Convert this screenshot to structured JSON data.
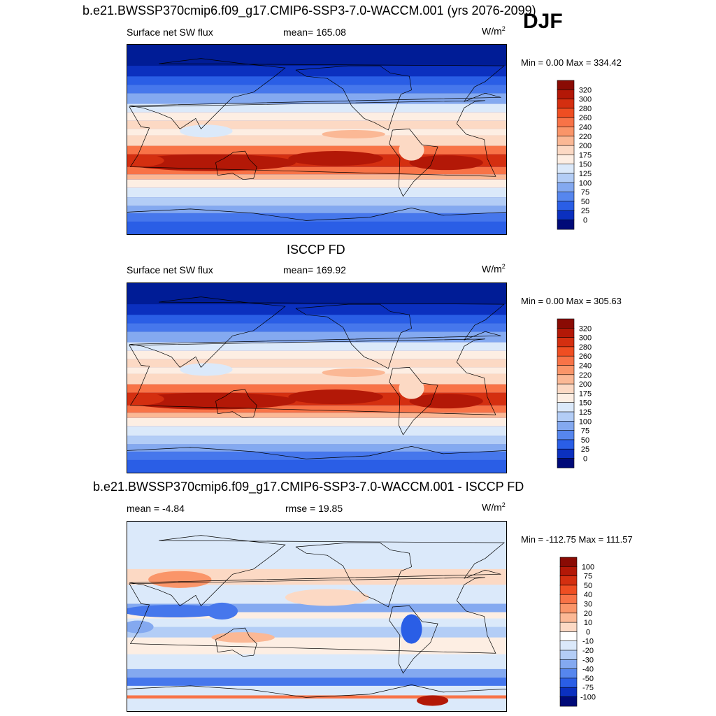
{
  "season": "DJF",
  "colors": {
    "positive_ramp": [
      "#fdeee3",
      "#fcd4bc",
      "#fbb895",
      "#fa9a6e",
      "#f97a4a",
      "#f45a2a",
      "#e13d14",
      "#c8260a",
      "#a71406",
      "#8a0b04"
    ],
    "negative_ramp": [
      "#dbe9fa",
      "#c2d7f7",
      "#a3c1f4",
      "#84a9f0",
      "#6491ee",
      "#4677ec",
      "#2a5ee6",
      "#1747d9",
      "#0b30bf",
      "#001c96",
      "#000a78"
    ],
    "neutral": "#ffffff"
  },
  "chart_data": [
    {
      "type": "heatmap",
      "title": "b.e21.BWSSP370cmip6.f09_g17.CMIP6-SSP3-7.0-WACCM.001 (yrs 2076-2099)",
      "variable": "Surface net SW flux",
      "stat_text": "mean= 165.08",
      "units_base": "W/m",
      "units_exp": "2",
      "minmax_text": "Min =   0.00 Max = 334.42",
      "min": 0.0,
      "max": 334.42,
      "mean": 165.08,
      "colorbar_levels": [
        "320",
        "300",
        "280",
        "260",
        "240",
        "220",
        "200",
        "175",
        "150",
        "125",
        "100",
        "75",
        "50",
        "25",
        "0"
      ],
      "colorbar_colors": [
        "#8a0b04",
        "#b31807",
        "#d42f10",
        "#ef4e22",
        "#f87347",
        "#fa9569",
        "#fbb895",
        "#fcd9c4",
        "#fdeee3",
        "#dbe9fa",
        "#b3cdf6",
        "#84a9f0",
        "#5686ee",
        "#2a5ee6",
        "#0b30bf",
        "#000a78"
      ]
    },
    {
      "type": "heatmap",
      "title": "ISCCP FD",
      "variable": "Surface net SW flux",
      "stat_text": "mean= 169.92",
      "units_base": "W/m",
      "units_exp": "2",
      "minmax_text": "Min =   0.00 Max = 305.63",
      "min": 0.0,
      "max": 305.63,
      "mean": 169.92,
      "colorbar_levels": [
        "320",
        "300",
        "280",
        "260",
        "240",
        "220",
        "200",
        "175",
        "150",
        "125",
        "100",
        "75",
        "50",
        "25",
        "0"
      ],
      "colorbar_colors": [
        "#8a0b04",
        "#b31807",
        "#d42f10",
        "#ef4e22",
        "#f87347",
        "#fa9569",
        "#fbb895",
        "#fcd9c4",
        "#fdeee3",
        "#dbe9fa",
        "#b3cdf6",
        "#84a9f0",
        "#5686ee",
        "#2a5ee6",
        "#0b30bf",
        "#000a78"
      ]
    },
    {
      "type": "heatmap",
      "title": "b.e21.BWSSP370cmip6.f09_g17.CMIP6-SSP3-7.0-WACCM.001 - ISCCP FD",
      "mean_text": "mean =  -4.84",
      "rmse_text": "rmse =  19.85",
      "units_base": "W/m",
      "units_exp": "2",
      "minmax_text": "Min = -112.75 Max = 111.57",
      "min": -112.75,
      "max": 111.57,
      "mean": -4.84,
      "rmse": 19.85,
      "colorbar_levels": [
        "100",
        "75",
        "50",
        "40",
        "30",
        "20",
        "10",
        "0",
        "-10",
        "-20",
        "-30",
        "-40",
        "-50",
        "-75",
        "-100"
      ],
      "colorbar_colors": [
        "#8a0b04",
        "#b31807",
        "#d42f10",
        "#ef4e22",
        "#f87347",
        "#fa9569",
        "#fbb895",
        "#fcd9c4",
        "#ffffff",
        "#dbe9fa",
        "#b3cdf6",
        "#84a9f0",
        "#5686ee",
        "#2a5ee6",
        "#0b30bf",
        "#000a78"
      ]
    }
  ]
}
